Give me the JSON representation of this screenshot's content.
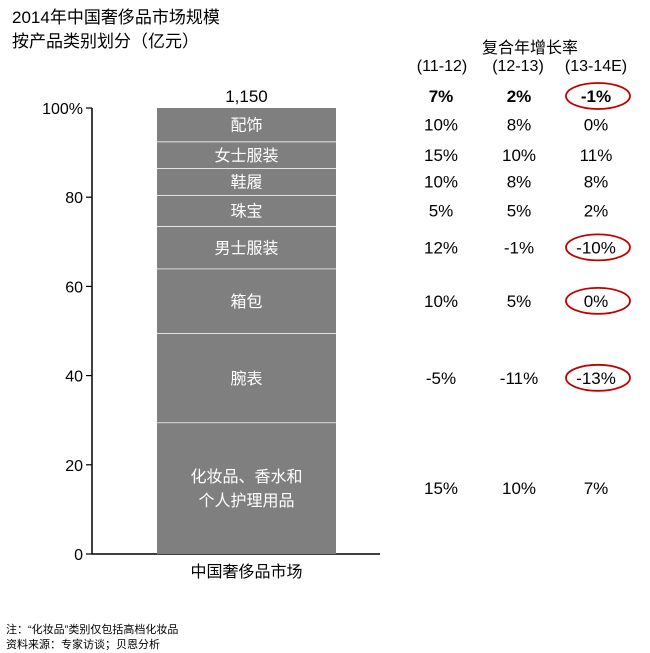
{
  "title_line1": "2014年中国奢侈品市场规模",
  "title_line2": "按产品类别划分（亿元）",
  "cagr": {
    "title": "复合年增长率",
    "periods": [
      "(11-12)",
      "(12-13)",
      "(13-14E)"
    ],
    "total": [
      "7%",
      "2%",
      "-1%"
    ]
  },
  "chart_data": {
    "type": "bar",
    "stacked": true,
    "normalized_percent": true,
    "categories": [
      "中国奢侈品市场"
    ],
    "total_label": "1,150",
    "ylim": [
      0,
      100
    ],
    "yticks": [
      0,
      20,
      40,
      60,
      80,
      100
    ],
    "ytick_labels": [
      "0",
      "20",
      "40",
      "60",
      "80",
      "100%"
    ],
    "segments": [
      {
        "label": "化妆品、香水和个人护理用品",
        "lines": [
          "化妆品、香水和",
          "个人护理用品"
        ],
        "share": 29.5,
        "cagr": [
          "15%",
          "10%",
          "7%"
        ],
        "circled": [
          false,
          false,
          false
        ]
      },
      {
        "label": "腕表",
        "lines": [
          "腕表"
        ],
        "share": 20,
        "cagr": [
          "-5%",
          "-11%",
          "-13%"
        ],
        "circled": [
          false,
          false,
          true
        ]
      },
      {
        "label": "箱包",
        "lines": [
          "箱包"
        ],
        "share": 14.5,
        "cagr": [
          "10%",
          "5%",
          "0%"
        ],
        "circled": [
          false,
          false,
          true
        ]
      },
      {
        "label": "男士服装",
        "lines": [
          "男士服装"
        ],
        "share": 9.5,
        "cagr": [
          "12%",
          "-1%",
          "-10%"
        ],
        "circled": [
          false,
          false,
          true
        ]
      },
      {
        "label": "珠宝",
        "lines": [
          "珠宝"
        ],
        "share": 7,
        "cagr": [
          "5%",
          "5%",
          "2%"
        ],
        "circled": [
          false,
          false,
          false
        ]
      },
      {
        "label": "鞋履",
        "lines": [
          "鞋履"
        ],
        "share": 6,
        "cagr": [
          "10%",
          "8%",
          "8%"
        ],
        "circled": [
          false,
          false,
          false
        ]
      },
      {
        "label": "女士服装",
        "lines": [
          "女士服装"
        ],
        "share": 6,
        "cagr": [
          "15%",
          "10%",
          "11%"
        ],
        "circled": [
          false,
          false,
          false
        ]
      },
      {
        "label": "配饰",
        "lines": [
          "配饰"
        ],
        "share": 7.5,
        "cagr": [
          "10%",
          "8%",
          "0%"
        ],
        "circled": [
          false,
          false,
          false
        ]
      }
    ],
    "total_circled": [
      false,
      false,
      true
    ],
    "colors": {
      "bar": "#7f7f7f",
      "separator": "#ffffff",
      "circle": "#c00000"
    }
  },
  "notes": [
    "注：“化妆品”类别仅包括高档化妆品",
    "资料来源：专家访谈；贝恩分析"
  ]
}
